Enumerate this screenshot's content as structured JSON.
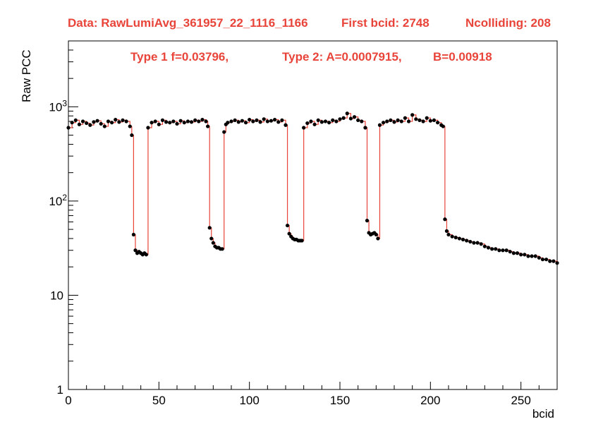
{
  "header": {
    "data_label": "Data: RawLumiAvg_361957_22_1116_1166",
    "first_bcid": "First bcid: 2748",
    "ncolliding": "Ncolliding: 208",
    "type1": "Type 1 f=0.03796,",
    "type2": "Type 2: A=0.0007915,",
    "b_param": "B=0.00918"
  },
  "colors": {
    "fit_line": "#e8443a",
    "points": "#000000",
    "header_text": "#e8443a"
  },
  "chart_data": {
    "type": "scatter",
    "title": "",
    "xlabel": "bcid",
    "ylabel": "Raw PCC",
    "xlim": [
      0,
      270
    ],
    "ylim": [
      1,
      5000
    ],
    "yscale": "log",
    "grid": false,
    "x_ticks": [
      0,
      50,
      100,
      150,
      200,
      250
    ],
    "y_ticks": [
      {
        "value": 1,
        "label": "1"
      },
      {
        "value": 10,
        "label": "10"
      },
      {
        "value": 100,
        "label": "10",
        "sup": "2"
      },
      {
        "value": 1000,
        "label": "10",
        "sup": "3"
      }
    ],
    "series": [
      {
        "kind": "points",
        "x": [
          0,
          2,
          4,
          6,
          8,
          10,
          12,
          14,
          16,
          18,
          20,
          22,
          24,
          26,
          28,
          30,
          32,
          34,
          35,
          36,
          37,
          38,
          39,
          40,
          41,
          42,
          43,
          44,
          46,
          48,
          50,
          52,
          54,
          56,
          58,
          60,
          62,
          64,
          66,
          68,
          70,
          72,
          74,
          76,
          77,
          78,
          79,
          80,
          81,
          82,
          83,
          84,
          85,
          86,
          87,
          88,
          90,
          92,
          94,
          96,
          98,
          100,
          102,
          104,
          106,
          108,
          110,
          112,
          114,
          116,
          118,
          120,
          121,
          122,
          123,
          124,
          125,
          126,
          127,
          128,
          129,
          130,
          132,
          134,
          136,
          138,
          140,
          142,
          144,
          146,
          148,
          150,
          152,
          154,
          156,
          158,
          160,
          162,
          164,
          165,
          166,
          167,
          168,
          169,
          170,
          171,
          172,
          174,
          176,
          178,
          180,
          182,
          184,
          186,
          188,
          190,
          192,
          194,
          196,
          198,
          200,
          202,
          204,
          206,
          207,
          208,
          209,
          210,
          212,
          214,
          216,
          218,
          220,
          222,
          224,
          226,
          228,
          230,
          232,
          234,
          236,
          238,
          240,
          242,
          244,
          246,
          248,
          250,
          252,
          254,
          256,
          258,
          260,
          262,
          264,
          266,
          268,
          270
        ],
        "y": [
          600,
          680,
          720,
          650,
          700,
          670,
          640,
          690,
          710,
          660,
          620,
          700,
          680,
          730,
          690,
          720,
          700,
          620,
          500,
          44,
          30,
          28,
          29,
          28,
          27,
          28,
          27,
          600,
          680,
          700,
          650,
          720,
          690,
          680,
          700,
          660,
          710,
          680,
          700,
          690,
          720,
          700,
          730,
          700,
          620,
          52,
          40,
          36,
          33,
          32,
          32,
          31,
          31,
          540,
          650,
          680,
          700,
          720,
          690,
          710,
          680,
          730,
          700,
          720,
          690,
          740,
          700,
          710,
          730,
          690,
          720,
          640,
          55,
          45,
          42,
          40,
          39,
          39,
          38,
          38,
          38,
          600,
          670,
          700,
          650,
          720,
          690,
          700,
          680,
          720,
          700,
          740,
          760,
          850,
          750,
          780,
          720,
          700,
          600,
          62,
          46,
          44,
          45,
          46,
          44,
          40,
          640,
          680,
          700,
          720,
          690,
          720,
          700,
          760,
          700,
          820,
          740,
          720,
          700,
          760,
          710,
          720,
          680,
          640,
          620,
          64,
          48,
          44,
          42,
          41,
          40,
          39,
          38,
          37,
          36,
          36,
          35,
          33,
          32,
          31,
          31,
          30,
          30,
          30,
          29,
          28,
          28,
          27,
          27,
          26,
          26,
          26,
          25,
          24,
          24,
          23,
          23,
          22
        ]
      },
      {
        "kind": "fit",
        "x": [
          0,
          2,
          4,
          6,
          8,
          10,
          12,
          14,
          16,
          18,
          20,
          22,
          24,
          26,
          28,
          30,
          32,
          34,
          35,
          36,
          37,
          38,
          39,
          40,
          41,
          42,
          43,
          44,
          46,
          48,
          50,
          52,
          54,
          56,
          58,
          60,
          62,
          64,
          66,
          68,
          70,
          72,
          74,
          76,
          77,
          78,
          79,
          80,
          81,
          82,
          83,
          84,
          85,
          86,
          87,
          88,
          90,
          92,
          94,
          96,
          98,
          100,
          102,
          104,
          106,
          108,
          110,
          112,
          114,
          116,
          118,
          120,
          121,
          122,
          123,
          124,
          125,
          126,
          127,
          128,
          129,
          130,
          132,
          134,
          136,
          138,
          140,
          142,
          144,
          146,
          148,
          150,
          152,
          154,
          156,
          158,
          160,
          162,
          164,
          165,
          166,
          167,
          168,
          169,
          170,
          171,
          172,
          174,
          176,
          178,
          180,
          182,
          184,
          186,
          188,
          190,
          192,
          194,
          196,
          198,
          200,
          202,
          204,
          206,
          207,
          208,
          209,
          210,
          212,
          214,
          216,
          218,
          220,
          222,
          224,
          226,
          228,
          230,
          232,
          234,
          236,
          238,
          240,
          242,
          244,
          246,
          248,
          250,
          252,
          254,
          256,
          258,
          260,
          262,
          264,
          266,
          268,
          270
        ],
        "y": [
          600,
          680,
          720,
          650,
          700,
          670,
          640,
          690,
          710,
          660,
          620,
          700,
          680,
          730,
          690,
          720,
          700,
          620,
          500,
          44,
          30,
          28,
          29,
          28,
          27,
          28,
          27,
          600,
          680,
          700,
          650,
          720,
          690,
          680,
          700,
          660,
          710,
          680,
          700,
          690,
          720,
          700,
          730,
          700,
          620,
          52,
          40,
          36,
          33,
          32,
          32,
          31,
          31,
          540,
          650,
          680,
          700,
          720,
          690,
          710,
          680,
          730,
          700,
          720,
          690,
          740,
          700,
          710,
          730,
          690,
          720,
          640,
          55,
          45,
          42,
          40,
          39,
          39,
          38,
          38,
          38,
          600,
          670,
          700,
          650,
          720,
          690,
          700,
          680,
          720,
          700,
          740,
          760,
          850,
          750,
          780,
          720,
          700,
          600,
          62,
          46,
          44,
          45,
          46,
          44,
          40,
          640,
          680,
          700,
          720,
          690,
          720,
          700,
          760,
          700,
          820,
          740,
          720,
          700,
          760,
          710,
          720,
          680,
          640,
          620,
          64,
          48,
          44,
          42,
          41,
          40,
          39,
          38,
          37,
          36,
          36,
          35,
          33,
          32,
          31,
          31,
          30,
          30,
          30,
          29,
          28,
          28,
          27,
          27,
          26,
          26,
          26,
          25,
          24,
          24,
          23,
          23,
          22
        ]
      }
    ]
  }
}
